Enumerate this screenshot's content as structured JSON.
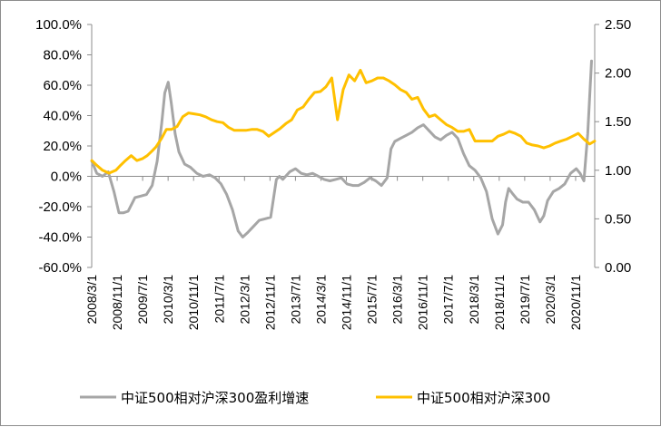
{
  "chart_data": {
    "type": "line",
    "title": "",
    "y_left": {
      "min": -0.6,
      "max": 1.0,
      "step": 0.2,
      "tick_labels": [
        "100.0%",
        "80.0%",
        "60.0%",
        "40.0%",
        "20.0%",
        "0.0%",
        "-20.0%",
        "-40.0%",
        "-60.0%"
      ]
    },
    "y_right": {
      "min": 0.0,
      "max": 2.5,
      "step": 0.5,
      "tick_labels": [
        "2.50",
        "2.00",
        "1.50",
        "1.00",
        "0.50",
        "0.00"
      ]
    },
    "x_range": [
      2008.1667,
      2021.3333
    ],
    "x_tick_labels": [
      "2008/3/1",
      "2008/11/1",
      "2009/7/1",
      "2010/3/1",
      "2010/11/1",
      "2011/7/1",
      "2012/3/1",
      "2012/11/1",
      "2013/7/1",
      "2014/3/1",
      "2014/11/1",
      "2015/7/1",
      "2016/3/1",
      "2016/11/1",
      "2017/7/1",
      "2018/3/1",
      "2018/11/1",
      "2019/7/1",
      "2020/3/1",
      "2020/11/1"
    ],
    "legend_position": "bottom",
    "series": [
      {
        "name": "中证500相对沪深300盈利增速",
        "axis": "left",
        "color": "#a6a6a6",
        "x": [
          2008.17,
          2008.3,
          2008.45,
          2008.6,
          2008.75,
          2008.88,
          2009.0,
          2009.12,
          2009.3,
          2009.45,
          2009.6,
          2009.75,
          2009.88,
          2010.0,
          2010.08,
          2010.17,
          2010.25,
          2010.35,
          2010.45,
          2010.6,
          2010.75,
          2010.92,
          2011.08,
          2011.25,
          2011.4,
          2011.55,
          2011.7,
          2011.85,
          2012.0,
          2012.12,
          2012.25,
          2012.4,
          2012.55,
          2012.7,
          2012.85,
          2013.0,
          2013.08,
          2013.17,
          2013.35,
          2013.5,
          2013.65,
          2013.8,
          2013.95,
          2014.1,
          2014.25,
          2014.4,
          2014.55,
          2014.7,
          2014.85,
          2015.0,
          2015.15,
          2015.3,
          2015.45,
          2015.6,
          2015.75,
          2015.9,
          2016.0,
          2016.1,
          2016.25,
          2016.4,
          2016.55,
          2016.7,
          2016.85,
          2017.0,
          2017.15,
          2017.3,
          2017.45,
          2017.6,
          2017.75,
          2017.9,
          2018.05,
          2018.2,
          2018.35,
          2018.5,
          2018.65,
          2018.8,
          2018.92,
          2019.0,
          2019.08,
          2019.17,
          2019.3,
          2019.45,
          2019.6,
          2019.75,
          2019.9,
          2020.0,
          2020.1,
          2020.25,
          2020.4,
          2020.55,
          2020.7,
          2020.85,
          2020.95,
          2021.05,
          2021.15,
          2021.25
        ],
        "values": [
          0.1,
          0.02,
          0.0,
          0.03,
          -0.1,
          -0.24,
          -0.24,
          -0.23,
          -0.14,
          -0.13,
          -0.12,
          -0.06,
          0.1,
          0.35,
          0.55,
          0.62,
          0.48,
          0.28,
          0.16,
          0.08,
          0.06,
          0.02,
          0.0,
          0.01,
          -0.01,
          -0.05,
          -0.12,
          -0.22,
          -0.36,
          -0.4,
          -0.37,
          -0.33,
          -0.29,
          -0.28,
          -0.27,
          -0.02,
          0.0,
          -0.02,
          0.03,
          0.05,
          0.02,
          0.01,
          0.02,
          0.0,
          -0.02,
          -0.03,
          -0.02,
          -0.01,
          -0.05,
          -0.06,
          -0.06,
          -0.04,
          -0.01,
          -0.03,
          -0.06,
          -0.01,
          0.18,
          0.23,
          0.25,
          0.27,
          0.29,
          0.32,
          0.34,
          0.3,
          0.26,
          0.24,
          0.27,
          0.29,
          0.25,
          0.15,
          0.07,
          0.04,
          -0.01,
          -0.1,
          -0.28,
          -0.38,
          -0.32,
          -0.17,
          -0.08,
          -0.11,
          -0.15,
          -0.17,
          -0.17,
          -0.22,
          -0.3,
          -0.26,
          -0.16,
          -0.1,
          -0.08,
          -0.05,
          0.02,
          0.05,
          0.02,
          -0.03,
          0.28,
          0.76
        ]
      },
      {
        "name": "中证500相对沪深300",
        "axis": "right",
        "color": "#ffc000",
        "x": [
          2008.17,
          2008.3,
          2008.45,
          2008.62,
          2008.8,
          2008.92,
          2009.05,
          2009.2,
          2009.35,
          2009.5,
          2009.62,
          2009.75,
          2009.85,
          2010.0,
          2010.12,
          2010.25,
          2010.4,
          2010.55,
          2010.7,
          2010.85,
          2011.0,
          2011.15,
          2011.3,
          2011.45,
          2011.6,
          2011.75,
          2011.9,
          2012.05,
          2012.2,
          2012.35,
          2012.5,
          2012.65,
          2012.8,
          2012.95,
          2013.1,
          2013.25,
          2013.4,
          2013.55,
          2013.7,
          2013.85,
          2014.0,
          2014.15,
          2014.3,
          2014.45,
          2014.6,
          2014.75,
          2014.9,
          2015.05,
          2015.2,
          2015.35,
          2015.5,
          2015.65,
          2015.8,
          2015.95,
          2016.1,
          2016.25,
          2016.4,
          2016.55,
          2016.7,
          2016.85,
          2017.0,
          2017.15,
          2017.3,
          2017.45,
          2017.6,
          2017.75,
          2017.9,
          2018.05,
          2018.2,
          2018.35,
          2018.5,
          2018.65,
          2018.8,
          2018.95,
          2019.1,
          2019.25,
          2019.4,
          2019.55,
          2019.7,
          2019.85,
          2020.0,
          2020.15,
          2020.3,
          2020.45,
          2020.6,
          2020.75,
          2020.9,
          2021.05,
          2021.2,
          2021.33
        ],
        "values": [
          1.1,
          1.05,
          1.0,
          0.97,
          1.0,
          1.05,
          1.1,
          1.15,
          1.1,
          1.12,
          1.15,
          1.2,
          1.24,
          1.33,
          1.42,
          1.42,
          1.45,
          1.55,
          1.59,
          1.58,
          1.57,
          1.55,
          1.52,
          1.5,
          1.49,
          1.44,
          1.41,
          1.41,
          1.41,
          1.42,
          1.42,
          1.4,
          1.35,
          1.39,
          1.43,
          1.48,
          1.52,
          1.62,
          1.65,
          1.73,
          1.8,
          1.81,
          1.86,
          1.95,
          1.52,
          1.83,
          1.98,
          1.92,
          2.03,
          1.9,
          1.92,
          1.95,
          1.95,
          1.92,
          1.88,
          1.83,
          1.8,
          1.73,
          1.75,
          1.63,
          1.55,
          1.57,
          1.52,
          1.47,
          1.44,
          1.4,
          1.4,
          1.42,
          1.3,
          1.3,
          1.3,
          1.3,
          1.35,
          1.37,
          1.4,
          1.38,
          1.35,
          1.28,
          1.26,
          1.25,
          1.23,
          1.25,
          1.28,
          1.3,
          1.32,
          1.35,
          1.38,
          1.32,
          1.27,
          1.3
        ]
      }
    ]
  }
}
